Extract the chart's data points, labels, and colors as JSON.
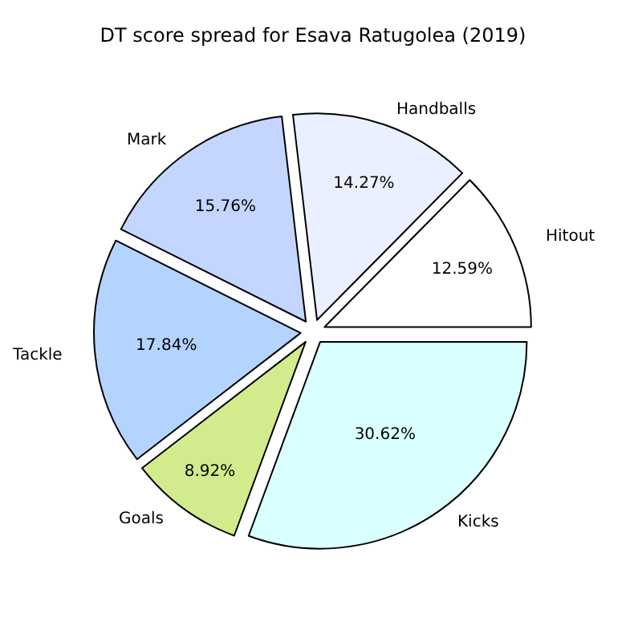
{
  "chart_data": {
    "type": "pie",
    "title": "DT score spread for Esava Ratugolea (2019)",
    "categories": [
      "Hitout",
      "Handballs",
      "Mark",
      "Tackle",
      "Goals",
      "Kicks"
    ],
    "values": [
      12.59,
      14.27,
      15.76,
      17.84,
      8.92,
      30.62
    ],
    "value_labels": [
      "12.59%",
      "14.27%",
      "15.76%",
      "17.84%",
      "8.92%",
      "30.62%"
    ],
    "colors": [
      "#ffffff",
      "#eaf0ff",
      "#c4d6ff",
      "#b3d4ff",
      "#d2eb8c",
      "#d9ffff"
    ],
    "legend": false
  }
}
